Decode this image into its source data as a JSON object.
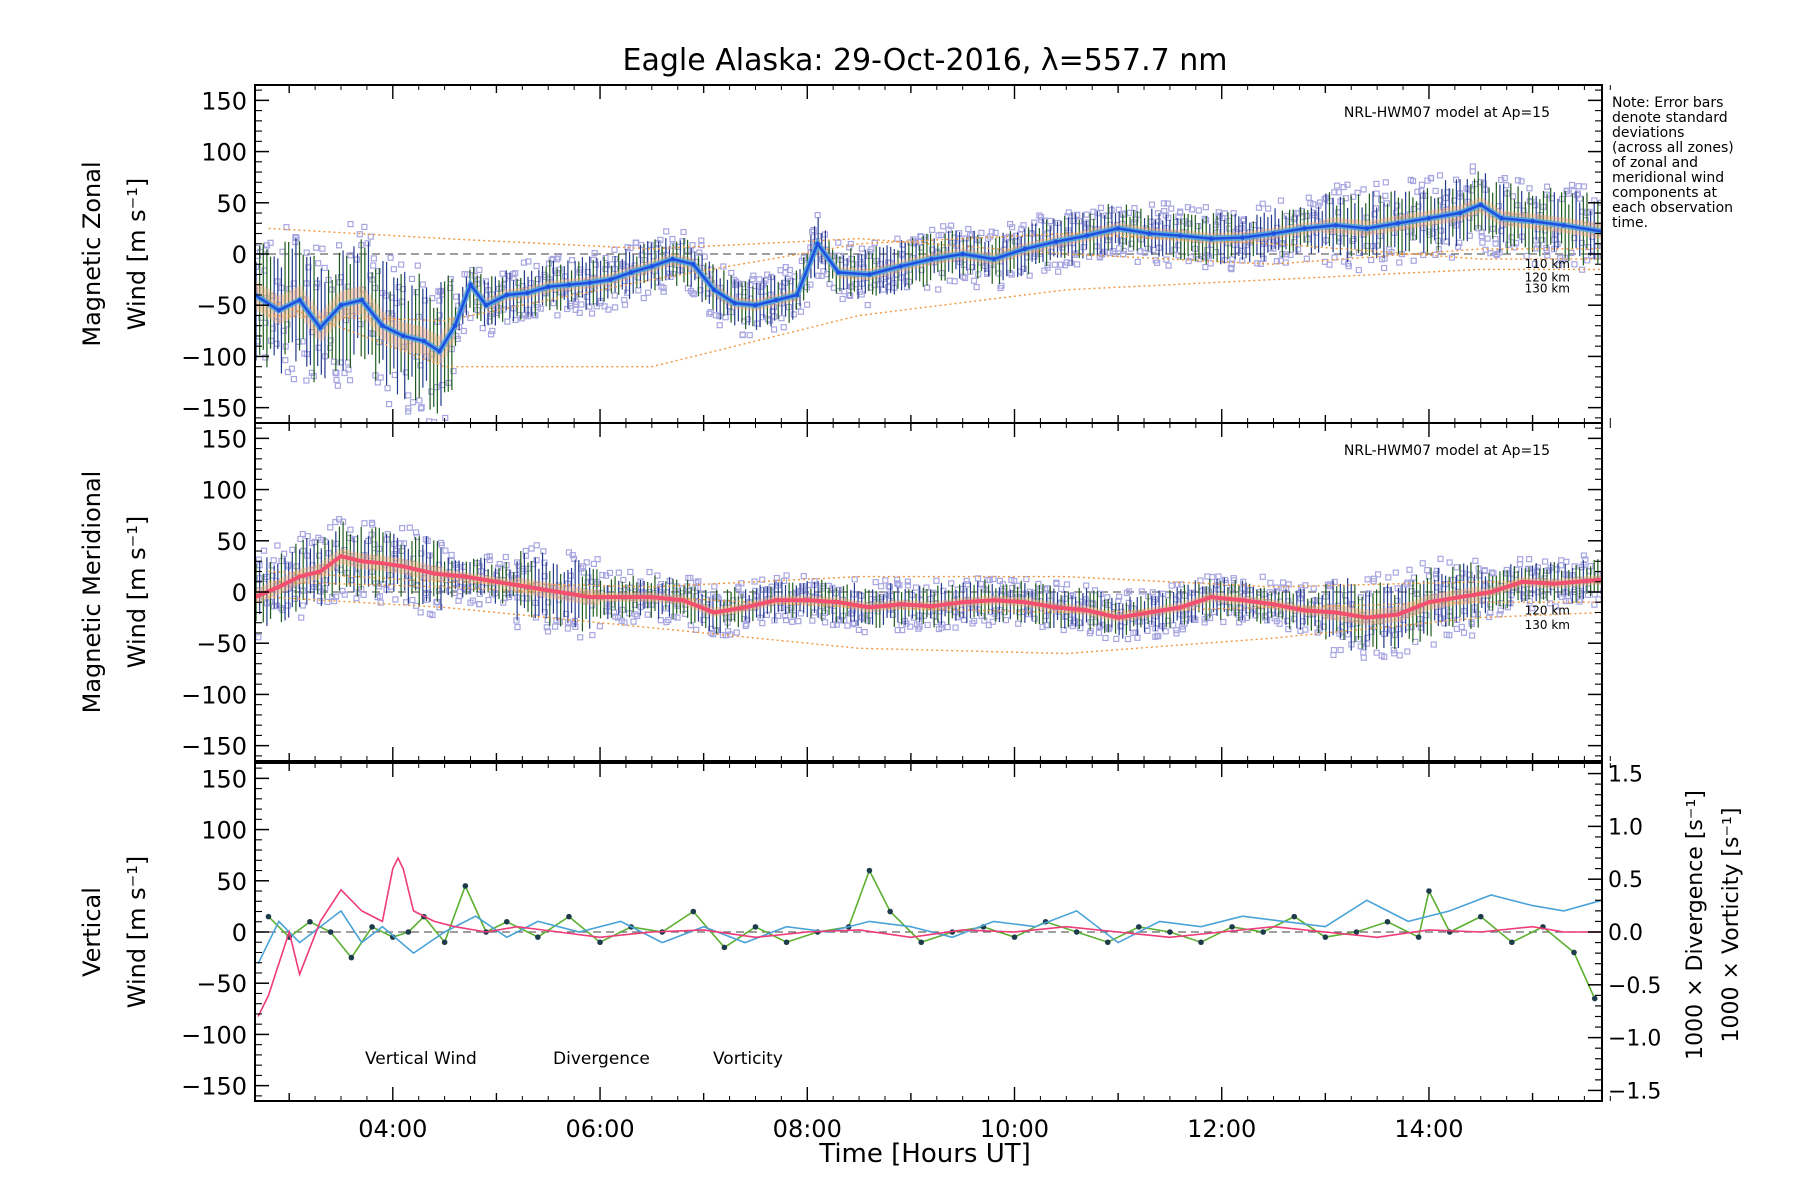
{
  "chart_data": {
    "title": "Eagle Alaska: 29-Oct-2016, λ=557.7 nm",
    "xlabel": "Time [Hours UT]",
    "x_ticks": [
      "04:00",
      "06:00",
      "08:00",
      "10:00",
      "12:00",
      "14:00"
    ],
    "x_tick_hours": [
      4,
      6,
      8,
      10,
      12,
      14
    ],
    "xlim_hours": [
      2.67,
      15.67
    ],
    "note_lines": [
      "Note: Error bars",
      "denote standard",
      "deviations",
      "(across all zones)",
      "of zonal and",
      "meridional wind",
      "components at",
      "each observation",
      "time."
    ],
    "panels": [
      {
        "name": "zonal",
        "type": "line",
        "ylabel_line1": "Magnetic Zonal",
        "ylabel_line2": "Wind [m s⁻¹]",
        "ylim": [
          -165,
          165
        ],
        "y_ticks": [
          150,
          100,
          50,
          0,
          -50,
          -100,
          -150
        ],
        "model_label": "NRL-HWM07 model at Ap=15",
        "altitude_labels": [
          "110 km",
          "120 km",
          "130 km"
        ],
        "series_color": "#1f4fe0",
        "series_color_light": "#4aa3e0",
        "series": {
          "name": "",
          "x": [
            2.67,
            2.9,
            3.1,
            3.3,
            3.5,
            3.7,
            3.9,
            4.1,
            4.3,
            4.45,
            4.6,
            4.75,
            4.9,
            5.1,
            5.3,
            5.5,
            5.7,
            5.9,
            6.1,
            6.3,
            6.5,
            6.7,
            6.9,
            7.1,
            7.3,
            7.5,
            7.7,
            7.9,
            8.1,
            8.3,
            8.6,
            8.9,
            9.2,
            9.5,
            9.8,
            10.1,
            10.4,
            10.7,
            11.0,
            11.3,
            11.6,
            11.9,
            12.2,
            12.5,
            12.8,
            13.1,
            13.4,
            13.7,
            14.0,
            14.3,
            14.5,
            14.7,
            15.0,
            15.3,
            15.67
          ],
          "y": [
            -40,
            -55,
            -45,
            -72,
            -50,
            -45,
            -70,
            -80,
            -85,
            -95,
            -70,
            -30,
            -50,
            -40,
            -38,
            -32,
            -30,
            -28,
            -25,
            -18,
            -12,
            -5,
            -10,
            -35,
            -48,
            -50,
            -45,
            -40,
            10,
            -18,
            -20,
            -12,
            -5,
            0,
            -5,
            5,
            12,
            18,
            25,
            20,
            18,
            15,
            16,
            20,
            25,
            28,
            25,
            30,
            35,
            40,
            48,
            35,
            32,
            28,
            22
          ]
        },
        "model_curves": [
          {
            "name": "110 km",
            "x": [
              2.8,
              4.5,
              6.5,
              8.5,
              10.5,
              12.5,
              14.5,
              15.67
            ],
            "y": [
              -60,
              -65,
              -25,
              10,
              20,
              10,
              -5,
              -5
            ]
          },
          {
            "name": "120 km",
            "x": [
              2.8,
              4.5,
              6.5,
              8.5,
              10.5,
              12.5,
              14.5,
              15.67
            ],
            "y": [
              -45,
              -110,
              -110,
              -60,
              -35,
              -25,
              -15,
              -15
            ]
          },
          {
            "name": "130 km",
            "x": [
              2.8,
              4.5,
              6.5,
              8.5,
              10.5,
              12.5,
              14.5,
              15.67
            ],
            "y": [
              25,
              15,
              5,
              15,
              0,
              -10,
              5,
              5
            ]
          }
        ]
      },
      {
        "name": "meridional",
        "type": "line",
        "ylabel_line1": "Magnetic Meridional",
        "ylabel_line2": "Wind [m s⁻¹]",
        "ylim": [
          -165,
          165
        ],
        "y_ticks": [
          150,
          100,
          50,
          0,
          -50,
          -100,
          -150
        ],
        "model_label": "NRL-HWM07 model at Ap=15",
        "altitude_labels": [
          "120 km",
          "130 km"
        ],
        "series_color": "#f2506e",
        "series": {
          "name": "",
          "x": [
            2.67,
            2.9,
            3.1,
            3.3,
            3.5,
            3.7,
            3.9,
            4.1,
            4.4,
            4.7,
            5.0,
            5.3,
            5.6,
            5.9,
            6.2,
            6.5,
            6.8,
            7.1,
            7.4,
            7.7,
            8.0,
            8.3,
            8.6,
            8.9,
            9.2,
            9.5,
            9.8,
            10.1,
            10.4,
            10.7,
            11.0,
            11.3,
            11.6,
            11.9,
            12.2,
            12.5,
            12.8,
            13.1,
            13.4,
            13.7,
            14.0,
            14.3,
            14.6,
            14.9,
            15.2,
            15.67
          ],
          "y": [
            -5,
            5,
            15,
            20,
            35,
            30,
            28,
            25,
            18,
            15,
            10,
            5,
            0,
            -5,
            -5,
            -5,
            -8,
            -20,
            -15,
            -8,
            -8,
            -10,
            -15,
            -12,
            -14,
            -10,
            -8,
            -10,
            -15,
            -18,
            -25,
            -20,
            -15,
            -5,
            -8,
            -12,
            -18,
            -20,
            -25,
            -22,
            -10,
            -5,
            0,
            10,
            8,
            12
          ]
        },
        "model_curves": [
          {
            "name": "120 km",
            "x": [
              2.8,
              4.5,
              6.5,
              8.5,
              10.5,
              12.5,
              14.5,
              15.67
            ],
            "y": [
              10,
              5,
              -5,
              -15,
              -20,
              -15,
              -10,
              -10
            ]
          },
          {
            "name": "130 km",
            "x": [
              2.8,
              4.5,
              6.5,
              8.5,
              10.5,
              12.5,
              14.5,
              15.67
            ],
            "y": [
              -5,
              -15,
              -35,
              -55,
              -60,
              -45,
              -25,
              -20
            ]
          },
          {
            "name": "110 km",
            "x": [
              2.8,
              4.5,
              6.5,
              8.5,
              10.5,
              12.5,
              14.5,
              15.67
            ],
            "y": [
              20,
              10,
              5,
              15,
              15,
              5,
              10,
              10
            ]
          }
        ]
      },
      {
        "name": "vertical",
        "type": "line",
        "ylabel_line1": "Vertical",
        "ylabel_line2": "Wind [m s⁻¹]",
        "ylim": [
          -165,
          165
        ],
        "y_ticks": [
          150,
          100,
          50,
          0,
          -50,
          -100,
          -150
        ],
        "y2lim": [
          -1.6,
          1.6
        ],
        "y2_ticks": [
          "1.5",
          "1.0",
          "0.5",
          "0.0",
          "−0.5",
          "−1.0",
          "−1.5"
        ],
        "y2_tick_values": [
          1.5,
          1.0,
          0.5,
          0.0,
          -0.5,
          -1.0,
          -1.5
        ],
        "y2label_divergence": "1000 × Divergence [s⁻¹]",
        "y2label_vorticity": "1000 × Vorticity [s⁻¹]",
        "legend": [
          "Vertical Wind",
          "Divergence",
          "Vorticity"
        ],
        "series": [
          {
            "name": "Vertical Wind",
            "color": "#5bb030",
            "axis": "left",
            "x": [
              2.8,
              3.0,
              3.2,
              3.4,
              3.6,
              3.8,
              4.0,
              4.15,
              4.3,
              4.5,
              4.7,
              4.9,
              5.1,
              5.4,
              5.7,
              6.0,
              6.3,
              6.6,
              6.9,
              7.2,
              7.5,
              7.8,
              8.1,
              8.4,
              8.6,
              8.8,
              9.1,
              9.4,
              9.7,
              10.0,
              10.3,
              10.6,
              10.9,
              11.2,
              11.5,
              11.8,
              12.1,
              12.4,
              12.7,
              13.0,
              13.3,
              13.6,
              13.9,
              14.0,
              14.2,
              14.5,
              14.8,
              15.1,
              15.4,
              15.6
            ],
            "y": [
              15,
              -5,
              10,
              0,
              -25,
              5,
              -5,
              0,
              15,
              -10,
              45,
              0,
              10,
              -5,
              15,
              -10,
              5,
              0,
              20,
              -15,
              5,
              -10,
              0,
              5,
              60,
              20,
              -10,
              0,
              5,
              -5,
              10,
              0,
              -10,
              5,
              0,
              -10,
              5,
              0,
              15,
              -5,
              0,
              10,
              -5,
              40,
              0,
              15,
              -10,
              5,
              -20,
              -65
            ]
          },
          {
            "name": "Divergence",
            "color": "#4aa3d8",
            "axis": "right",
            "x": [
              2.7,
              2.9,
              3.1,
              3.3,
              3.5,
              3.7,
              3.9,
              4.2,
              4.5,
              4.8,
              5.1,
              5.4,
              5.8,
              6.2,
              6.6,
              7.0,
              7.4,
              7.8,
              8.2,
              8.6,
              9.0,
              9.4,
              9.8,
              10.2,
              10.6,
              11.0,
              11.4,
              11.8,
              12.2,
              12.6,
              13.0,
              13.4,
              13.8,
              14.2,
              14.6,
              15.0,
              15.3,
              15.67
            ],
            "y": [
              -0.3,
              0.1,
              -0.1,
              0.05,
              0.2,
              -0.1,
              0.05,
              -0.2,
              0.0,
              0.15,
              -0.05,
              0.1,
              0.0,
              0.1,
              -0.1,
              0.05,
              -0.1,
              0.05,
              0.0,
              0.1,
              0.05,
              -0.05,
              0.1,
              0.05,
              0.2,
              -0.1,
              0.1,
              0.05,
              0.15,
              0.1,
              0.05,
              0.3,
              0.1,
              0.2,
              0.35,
              0.25,
              0.2,
              0.3
            ]
          },
          {
            "name": "Vorticity",
            "color": "#ee3c7a",
            "axis": "right",
            "x": [
              2.7,
              2.8,
              2.9,
              3.0,
              3.1,
              3.3,
              3.5,
              3.7,
              3.9,
              4.0,
              4.05,
              4.1,
              4.2,
              4.4,
              4.6,
              4.9,
              5.2,
              5.6,
              6.0,
              6.5,
              7.0,
              7.5,
              8.0,
              8.5,
              9.0,
              9.5,
              10.0,
              10.5,
              11.0,
              11.5,
              12.0,
              12.5,
              13.0,
              13.5,
              14.0,
              14.5,
              15.0,
              15.3,
              15.67
            ],
            "y": [
              -0.8,
              -0.6,
              -0.3,
              0.0,
              -0.4,
              0.1,
              0.4,
              0.2,
              0.1,
              0.6,
              0.7,
              0.6,
              0.2,
              0.1,
              0.05,
              0.0,
              0.05,
              0.0,
              -0.05,
              0.0,
              0.02,
              -0.05,
              0.0,
              0.02,
              -0.05,
              0.02,
              0.0,
              0.05,
              0.0,
              -0.05,
              0.0,
              0.05,
              0.0,
              -0.05,
              0.02,
              0.0,
              0.05,
              0.0,
              0.0
            ]
          }
        ]
      }
    ]
  }
}
